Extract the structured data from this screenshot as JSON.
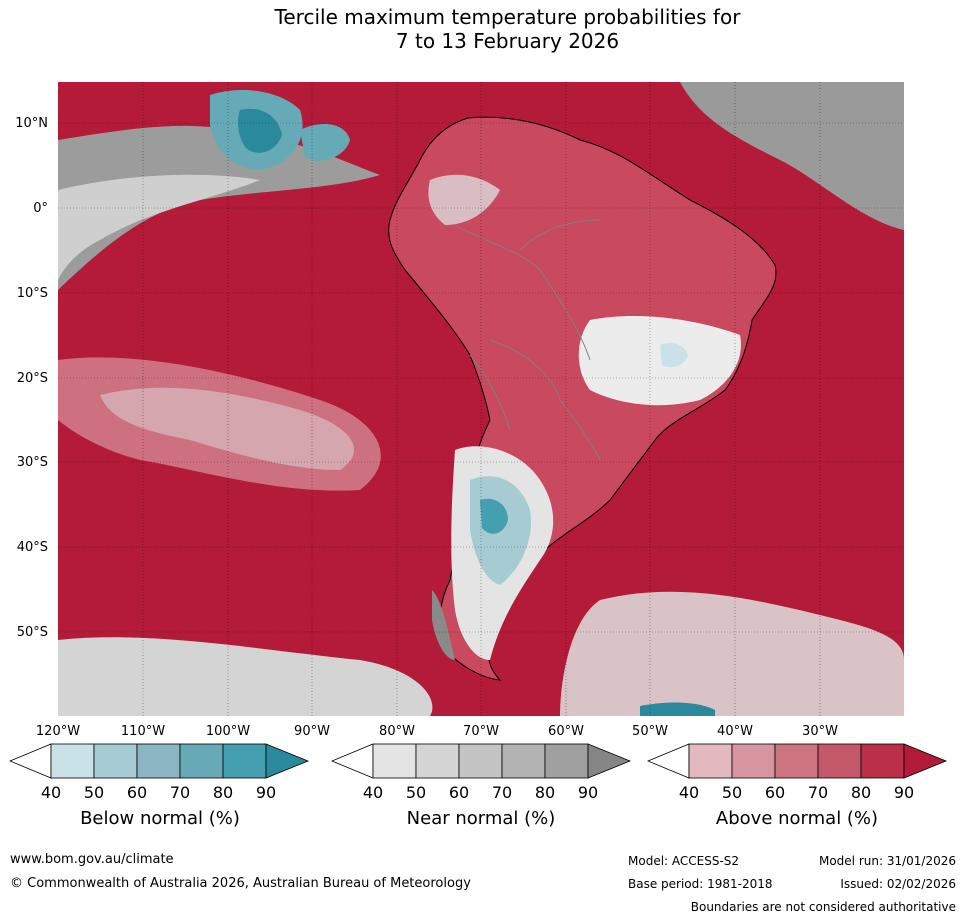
{
  "title": {
    "line1": "Tercile maximum temperature probabilities for",
    "line2": "7 to 13 February 2026"
  },
  "map": {
    "lat_labels": [
      "10°N",
      "0°",
      "10°S",
      "20°S",
      "30°S",
      "40°S",
      "50°S"
    ],
    "lon_labels": [
      "120°W",
      "110°W",
      "100°W",
      "90°W",
      "80°W",
      "70°W",
      "60°W",
      "50°W",
      "40°W",
      "30°W"
    ],
    "colors": {
      "ocean_above": "#b31b38",
      "land_above": "#c9495f",
      "near_grey": "#8a8a8a",
      "below_teal": "#2a8a9c"
    }
  },
  "legends": [
    {
      "title": "Below normal (%)",
      "ticks": [
        "40",
        "50",
        "60",
        "70",
        "80",
        "90"
      ],
      "colors": [
        "#ffffff",
        "#c9e2e8",
        "#a6cbd3",
        "#8bb5c3",
        "#66aab8",
        "#44a0b0",
        "#2a8a9c"
      ]
    },
    {
      "title": "Near normal (%)",
      "ticks": [
        "40",
        "50",
        "60",
        "70",
        "80",
        "90"
      ],
      "colors": [
        "#ffffff",
        "#e4e4e4",
        "#d4d4d4",
        "#c4c4c4",
        "#b3b3b3",
        "#a0a0a0",
        "#858585"
      ]
    },
    {
      "title": "Above normal (%)",
      "ticks": [
        "40",
        "50",
        "60",
        "70",
        "80",
        "90"
      ],
      "colors": [
        "#ffffff",
        "#e3b9bf",
        "#d8959f",
        "#cd7481",
        "#c45868",
        "#b93048",
        "#b31b38"
      ]
    }
  ],
  "footer": {
    "url": "www.bom.gov.au/climate",
    "copyright": "© Commonwealth of Australia 2026, Australian Bureau of Meteorology",
    "model": "Model: ACCESS-S2",
    "base_period": "Base period: 1981-2018",
    "model_run": "Model run: 31/01/2026",
    "issued": "Issued: 02/02/2026",
    "disclaimer": "Boundaries are not considered authoritative"
  }
}
